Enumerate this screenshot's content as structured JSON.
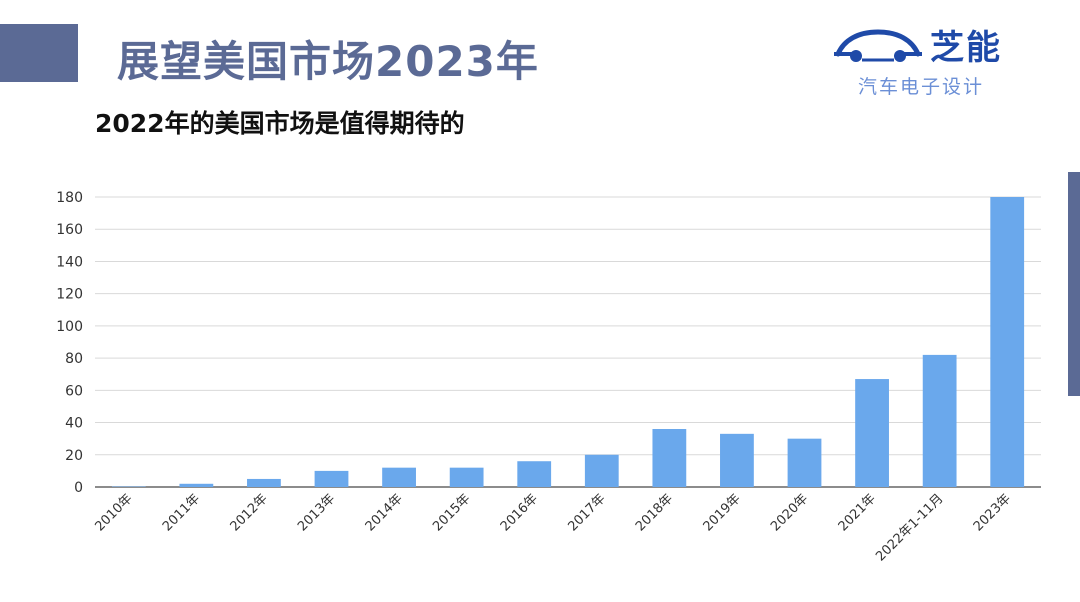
{
  "header": {
    "title": "展望美国市场2023年",
    "subtitle": "2022年的美国市场是值得期待的"
  },
  "logo": {
    "name": "芝能",
    "tagline": "汽车电子设计",
    "icon": "car-silhouette-icon",
    "color": "#1f4aa8"
  },
  "colors": {
    "accent": "#5b6a95",
    "bar": "#6aa8ec"
  },
  "chart_data": {
    "type": "bar",
    "categories": [
      "2010年",
      "2011年",
      "2012年",
      "2013年",
      "2014年",
      "2015年",
      "2016年",
      "2017年",
      "2018年",
      "2019年",
      "2020年",
      "2021年",
      "2022年1-11月",
      "2023年"
    ],
    "values": [
      0.3,
      2,
      5,
      10,
      12,
      12,
      16,
      20,
      36,
      33,
      30,
      67,
      82,
      180
    ],
    "ylim": [
      0,
      180
    ],
    "yticks": [
      0,
      20,
      40,
      60,
      80,
      100,
      120,
      140,
      160,
      180
    ],
    "grid": true,
    "legend": "none",
    "title": "",
    "xlabel": "",
    "ylabel": ""
  }
}
